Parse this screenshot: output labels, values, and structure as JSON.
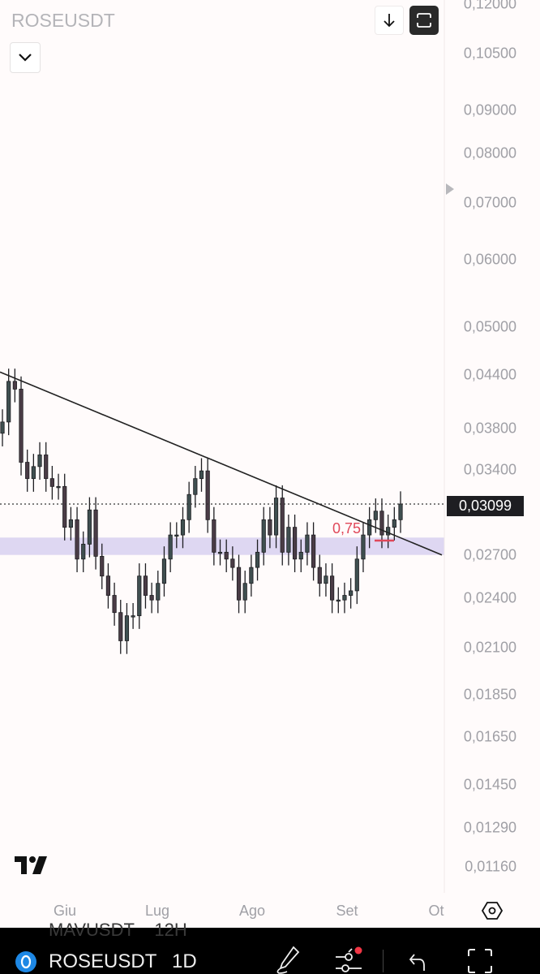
{
  "header": {
    "symbol": "ROSEUSDT"
  },
  "toolbar": {
    "collapse_icon": "chevron-down-icon",
    "scroll_down_icon": "arrow-down-icon",
    "fit_icon": "fit-screen-icon"
  },
  "bottom_bar": {
    "symbol": "ROSEUSDT",
    "interval": "1D",
    "previous_symbol": "MAVUSDT",
    "previous_interval": "12H",
    "icons": [
      "drawing-pen-icon",
      "indicators-icon",
      "undo-icon",
      "fullscreen-icon"
    ],
    "notification_color": "#f23645"
  },
  "chart_data": {
    "type": "candlestick",
    "scale": "log",
    "ylim": [
      0.0112,
      0.122
    ],
    "yticks": [
      "0,12000",
      "0,10500",
      "0,09000",
      "0,08000",
      "0,07000",
      "0,06000",
      "0,05000",
      "0,04400",
      "0,03800",
      "0,03400",
      "0,02700",
      "0,02400",
      "0,02100",
      "0,01850",
      "0,01650",
      "0,01450",
      "0,01290",
      "0,01160"
    ],
    "ytick_values": [
      0.12,
      0.105,
      0.09,
      0.08,
      0.07,
      0.06,
      0.05,
      0.044,
      0.038,
      0.034,
      0.027,
      0.024,
      0.021,
      0.0185,
      0.0165,
      0.0145,
      0.0129,
      0.0116
    ],
    "xticks": [
      "Giu",
      "Lug",
      "Ago",
      "Set",
      "Ot"
    ],
    "closes": [
      0.0387,
      0.0432,
      0.0423,
      0.0347,
      0.0332,
      0.0343,
      0.0354,
      0.0332,
      0.0325,
      0.0325,
      0.0291,
      0.0297,
      0.0267,
      0.0278,
      0.0305,
      0.0269,
      0.0255,
      0.0242,
      0.0231,
      0.0214,
      0.0229,
      0.0229,
      0.0255,
      0.0242,
      0.0239,
      0.025,
      0.0267,
      0.0285,
      0.0285,
      0.0297,
      0.0318,
      0.0332,
      0.0339,
      0.0297,
      0.0272,
      0.0272,
      0.0267,
      0.0261,
      0.0239,
      0.025,
      0.0261,
      0.0272,
      0.0297,
      0.0285,
      0.0315,
      0.0272,
      0.0291,
      0.0267,
      0.0272,
      0.0285,
      0.0261,
      0.025,
      0.0255,
      0.0239,
      0.0239,
      0.0242,
      0.0245,
      0.0267,
      0.0285,
      0.0297,
      0.0304,
      0.0285,
      0.0291,
      0.0297,
      0.03099
    ],
    "last_price": "0,03099",
    "last_price_value": 0.03099,
    "trendline": {
      "start": 0.0443,
      "end": 0.027
    },
    "zone": {
      "low": 0.027,
      "high": 0.0283,
      "color": "#d8d0f0"
    },
    "annotation": {
      "text": "0,75",
      "color": "#e0485a"
    },
    "candle_up_color": "#3f4f50",
    "candle_down_color": "#4a3c46"
  }
}
